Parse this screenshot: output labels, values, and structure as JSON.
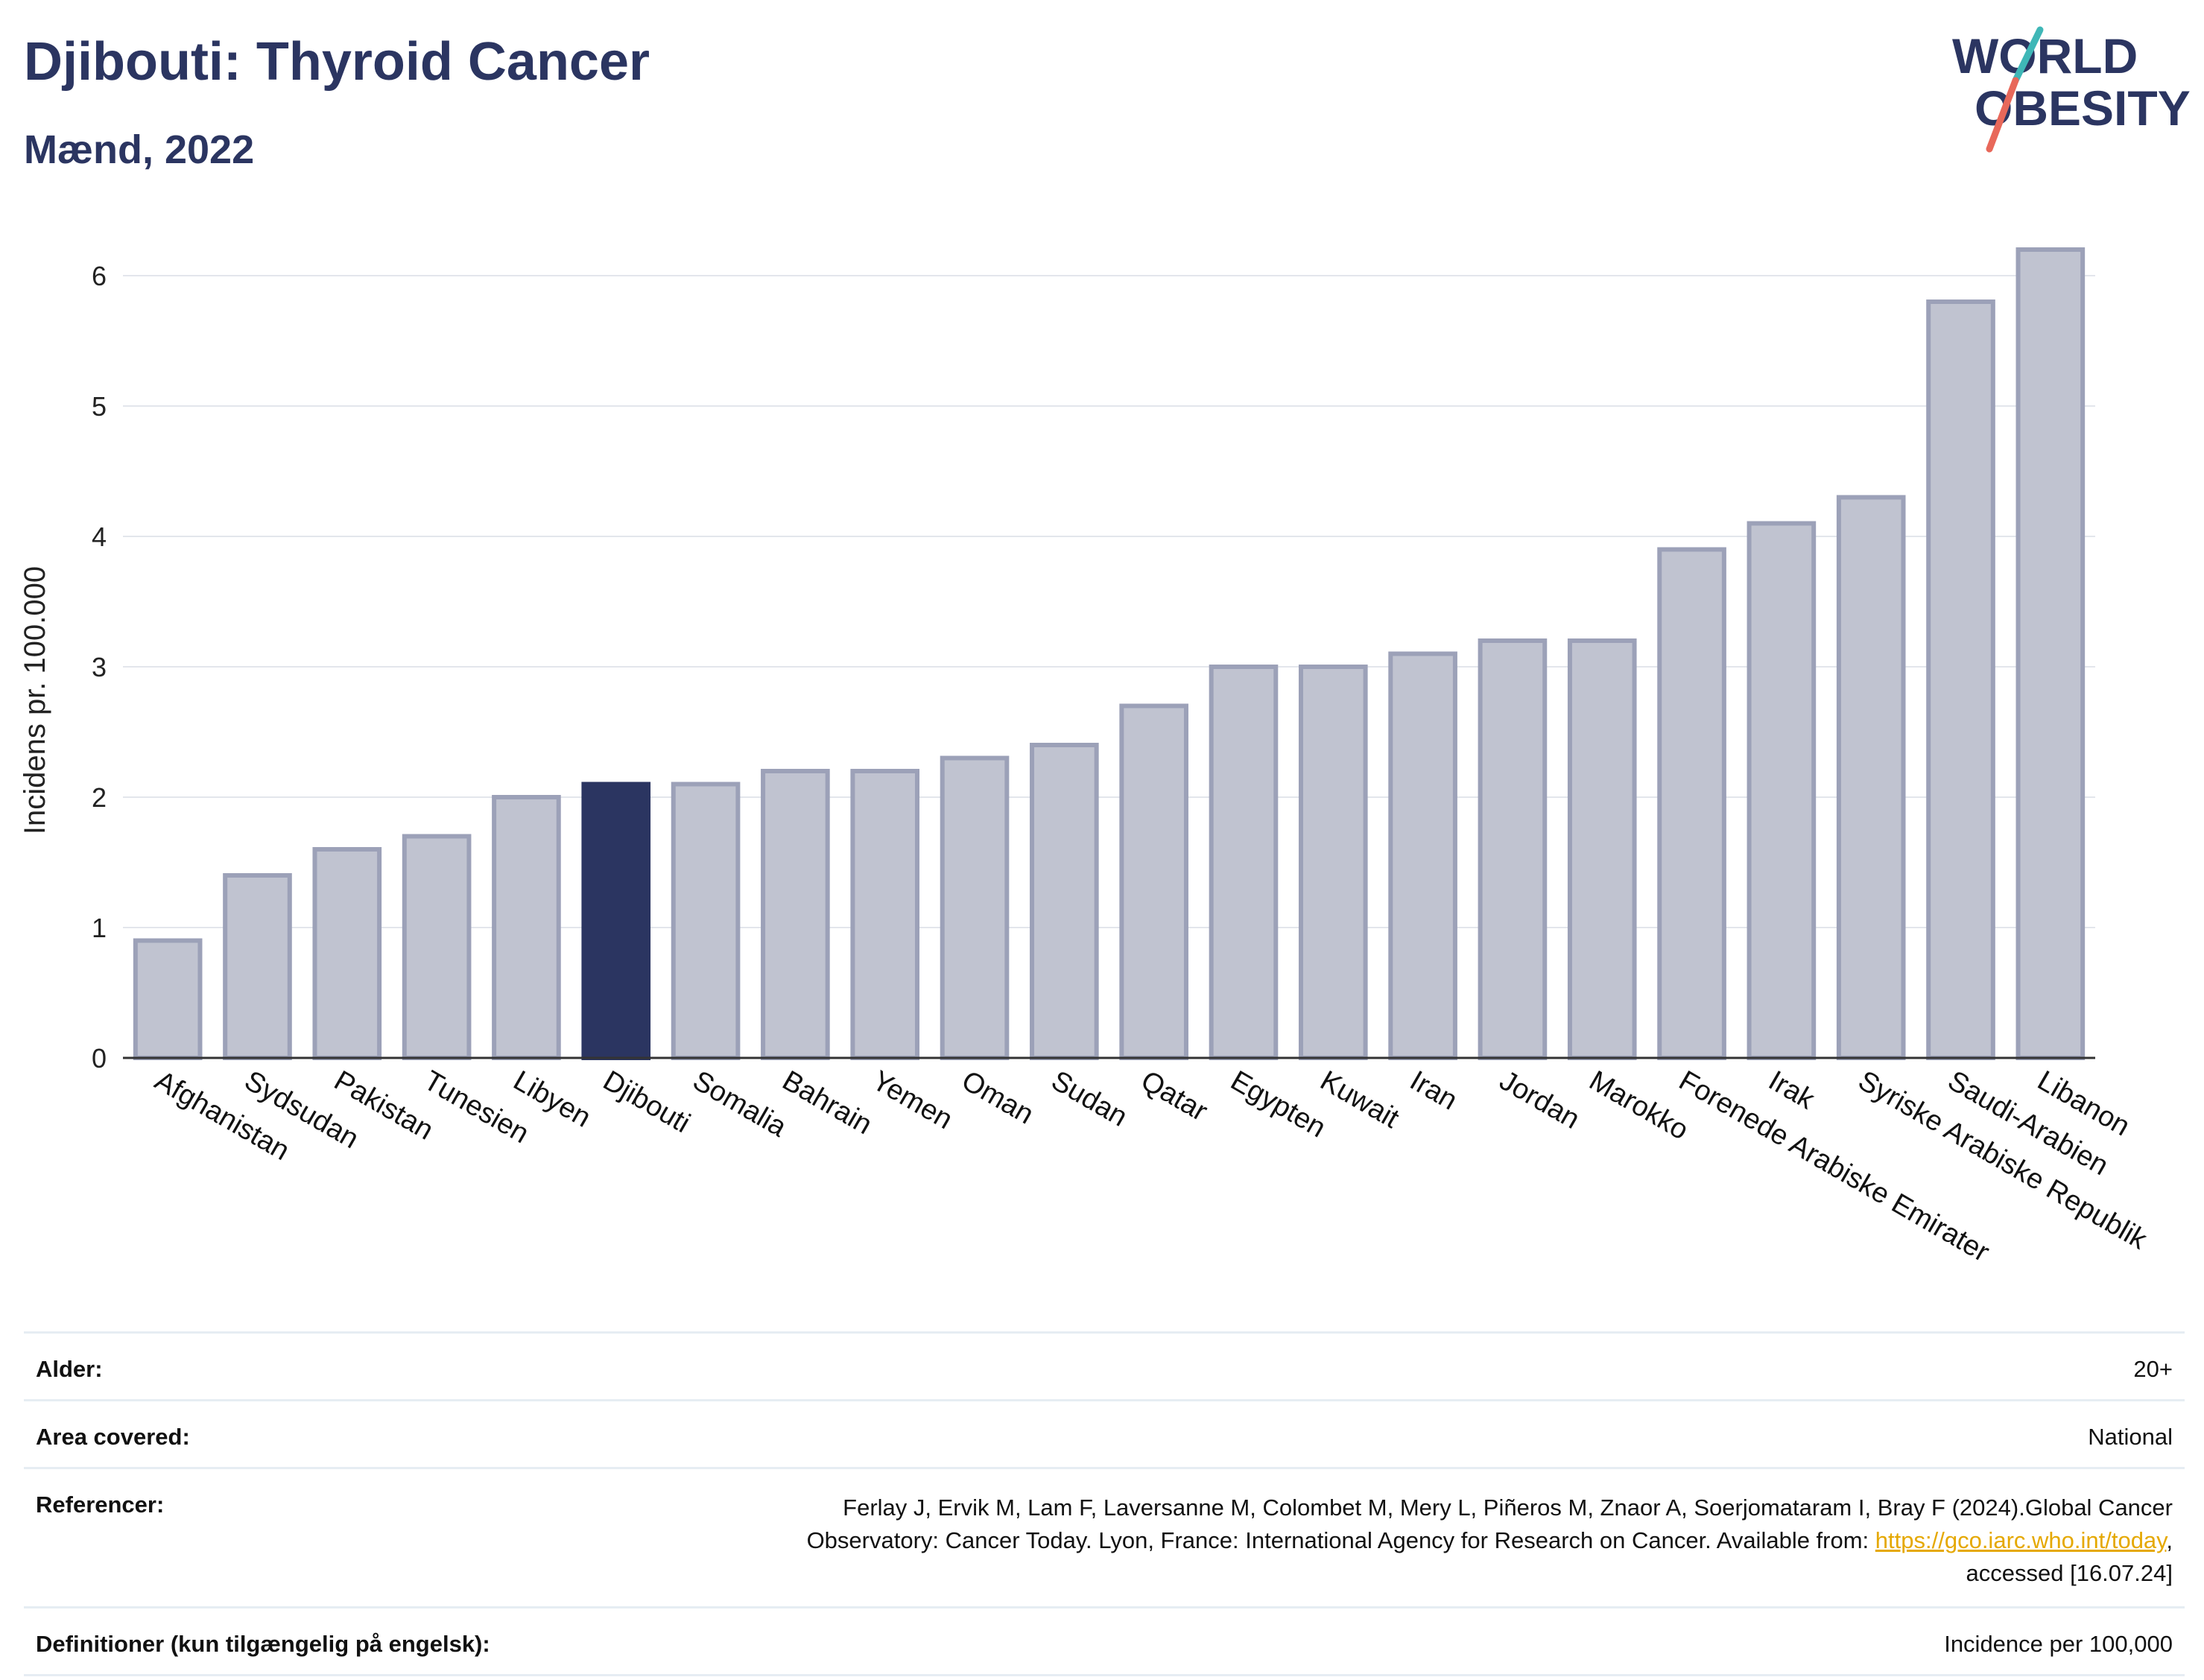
{
  "header": {
    "title": "Djibouti: Thyroid Cancer",
    "subtitle": "Mænd, 2022"
  },
  "logo": {
    "line1": "WORLD",
    "line2": "OBESITY",
    "colors": {
      "text": "#2b3561",
      "slash_red": "#e8685a",
      "slash_teal": "#3fb7b7"
    }
  },
  "chart_data": {
    "type": "bar",
    "title": "Djibouti: Thyroid Cancer",
    "subtitle": "Mænd, 2022",
    "xlabel": "",
    "ylabel": "Incidens pr. 100.000",
    "ylim": [
      0,
      6.4
    ],
    "yticks": [
      0,
      1,
      2,
      3,
      4,
      5,
      6
    ],
    "grid": true,
    "highlight": "Djibouti",
    "colors": {
      "bar": "#c0c3d0",
      "bar_border": "#9ca1b8",
      "highlight": "#2b3561"
    },
    "categories": [
      "Afghanistan",
      "Sydsudan",
      "Pakistan",
      "Tunesien",
      "Libyen",
      "Djibouti",
      "Somalia",
      "Bahrain",
      "Yemen",
      "Oman",
      "Sudan",
      "Qatar",
      "Egypten",
      "Kuwait",
      "Iran",
      "Jordan",
      "Marokko",
      "Forenede Arabiske Emirater",
      "Irak",
      "Syriske Arabiske Republik",
      "Saudi-Arabien",
      "Libanon"
    ],
    "values": [
      0.9,
      1.4,
      1.6,
      1.7,
      2.0,
      2.1,
      2.1,
      2.2,
      2.2,
      2.3,
      2.4,
      2.7,
      3.0,
      3.0,
      3.1,
      3.2,
      3.2,
      3.9,
      4.1,
      4.3,
      5.8,
      6.2
    ]
  },
  "info": {
    "age_label": "Alder:",
    "age_value": "20+",
    "area_label": "Area covered:",
    "area_value": "National",
    "ref_label": "Referencer:",
    "ref_line1": "Ferlay J, Ervik M, Lam F, Laversanne M, Colombet M, Mery L, Piñeros M, Znaor A, Soerjomataram I, Bray F (2024).Global Cancer",
    "ref_line2_pre": "Observatory: Cancer Today. Lyon, France: International Agency for Research on Cancer. Available from: ",
    "ref_link": "https://gco.iarc.who.int/today",
    "ref_line2_post": ",",
    "ref_line3": "accessed [16.07.24]",
    "def_label": "Definitioner (kun tilgængelig på engelsk):",
    "def_value": "Incidence per 100,000"
  }
}
